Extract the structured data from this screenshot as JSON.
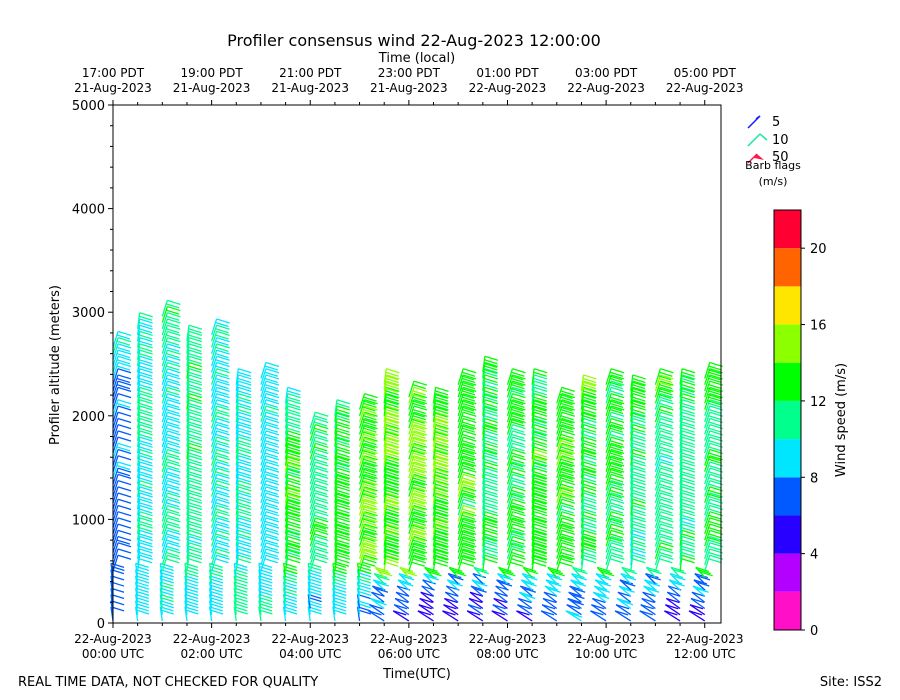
{
  "chart_data": {
    "type": "scatter",
    "title": "Profiler consensus wind 22-Aug-2023 12:00:00",
    "top_axis_label": "Time (local)",
    "xlabel": "Time(UTC)",
    "ylabel": "Profiler altitude (meters)",
    "ylim": [
      0,
      5000
    ],
    "xlim_hours": [
      0,
      12.33
    ],
    "y_ticks": [
      0,
      1000,
      2000,
      3000,
      4000,
      5000
    ],
    "bottom_ticks": [
      {
        "hour": 0,
        "line1": "22-Aug-2023",
        "line2": "00:00 UTC"
      },
      {
        "hour": 2,
        "line1": "22-Aug-2023",
        "line2": "02:00 UTC"
      },
      {
        "hour": 4,
        "line1": "22-Aug-2023",
        "line2": "04:00 UTC"
      },
      {
        "hour": 6,
        "line1": "22-Aug-2023",
        "line2": "06:00 UTC"
      },
      {
        "hour": 8,
        "line1": "22-Aug-2023",
        "line2": "08:00 UTC"
      },
      {
        "hour": 10,
        "line1": "22-Aug-2023",
        "line2": "10:00 UTC"
      },
      {
        "hour": 12,
        "line1": "22-Aug-2023",
        "line2": "12:00 UTC"
      }
    ],
    "top_ticks": [
      {
        "hour": 0,
        "line1": "17:00 PDT",
        "line2": "21-Aug-2023"
      },
      {
        "hour": 2,
        "line1": "19:00 PDT",
        "line2": "21-Aug-2023"
      },
      {
        "hour": 4,
        "line1": "21:00 PDT",
        "line2": "21-Aug-2023"
      },
      {
        "hour": 6,
        "line1": "23:00 PDT",
        "line2": "21-Aug-2023"
      },
      {
        "hour": 8,
        "line1": "01:00 PDT",
        "line2": "22-Aug-2023"
      },
      {
        "hour": 10,
        "line1": "03:00 PDT",
        "line2": "22-Aug-2023"
      },
      {
        "hour": 12,
        "line1": "05:00 PDT",
        "line2": "22-Aug-2023"
      }
    ],
    "barb_legend": {
      "title": "Barb flags",
      "units": "(m/s)",
      "entries": [
        {
          "label": "5",
          "color": "#1a1aff"
        },
        {
          "label": "10",
          "color": "#19e6a0"
        },
        {
          "label": "50",
          "color": "#ff1a4a"
        }
      ]
    },
    "colorbar": {
      "label": "Wind speed (m/s)",
      "min": 0,
      "max": 22,
      "ticks": [
        0,
        4,
        8,
        12,
        16,
        20
      ],
      "bins": [
        {
          "from": 0,
          "to": 2,
          "color": "#ff10c8"
        },
        {
          "from": 2,
          "to": 4,
          "color": "#b400ff"
        },
        {
          "from": 4,
          "to": 6,
          "color": "#2800ff"
        },
        {
          "from": 6,
          "to": 8,
          "color": "#005aff"
        },
        {
          "from": 8,
          "to": 10,
          "color": "#00e6ff"
        },
        {
          "from": 10,
          "to": 12,
          "color": "#00ff8c"
        },
        {
          "from": 12,
          "to": 14,
          "color": "#00ff00"
        },
        {
          "from": 14,
          "to": 16,
          "color": "#8cff00"
        },
        {
          "from": 16,
          "to": 18,
          "color": "#ffe600"
        },
        {
          "from": 18,
          "to": 20,
          "color": "#ff6400"
        },
        {
          "from": 20,
          "to": 22,
          "color": "#ff0032"
        }
      ]
    },
    "profiles": [
      {
        "hour": 0.0,
        "top": 2700,
        "lowspd": 7,
        "midspd": 7,
        "topspd": 10
      },
      {
        "hour": 0.5,
        "top": 2850,
        "lowspd": 9,
        "midspd": 10,
        "topspd": 10
      },
      {
        "hour": 1.0,
        "top": 3000,
        "lowspd": 9,
        "midspd": 10,
        "topspd": 12
      },
      {
        "hour": 1.5,
        "top": 2750,
        "lowspd": 9,
        "midspd": 11,
        "topspd": 11
      },
      {
        "hour": 2.0,
        "top": 2800,
        "lowspd": 9,
        "midspd": 10,
        "topspd": 10
      },
      {
        "hour": 2.5,
        "top": 2300,
        "lowspd": 12,
        "midspd": 10,
        "topspd": 9
      },
      {
        "hour": 3.0,
        "top": 2400,
        "lowspd": 10,
        "midspd": 9,
        "topspd": 9
      },
      {
        "hour": 3.5,
        "top": 2150,
        "lowspd": 9,
        "midspd": 13,
        "topspd": 10
      },
      {
        "hour": 4.0,
        "top": 1900,
        "lowspd": 8,
        "midspd": 12,
        "topspd": 11
      },
      {
        "hour": 4.5,
        "top": 2000,
        "lowspd": 8,
        "midspd": 13,
        "topspd": 12
      },
      {
        "hour": 5.0,
        "top": 2100,
        "lowspd": 7,
        "midspd": 14,
        "topspd": 13
      },
      {
        "hour": 5.5,
        "top": 2300,
        "lowspd": 6,
        "midspd": 14,
        "topspd": 14
      },
      {
        "hour": 6.0,
        "top": 2200,
        "lowspd": 5,
        "midspd": 14,
        "topspd": 13
      },
      {
        "hour": 6.5,
        "top": 2150,
        "lowspd": 4,
        "midspd": 14,
        "topspd": 14
      },
      {
        "hour": 7.0,
        "top": 2350,
        "lowspd": 4,
        "midspd": 13,
        "topspd": 13
      },
      {
        "hour": 7.5,
        "top": 2450,
        "lowspd": 5,
        "midspd": 12,
        "topspd": 13
      },
      {
        "hour": 8.0,
        "top": 2350,
        "lowspd": 5,
        "midspd": 12,
        "topspd": 13
      },
      {
        "hour": 8.5,
        "top": 2300,
        "lowspd": 6,
        "midspd": 13,
        "topspd": 12
      },
      {
        "hour": 9.0,
        "top": 2150,
        "lowspd": 6,
        "midspd": 13,
        "topspd": 13
      },
      {
        "hour": 9.5,
        "top": 2250,
        "lowspd": 7,
        "midspd": 12,
        "topspd": 14
      },
      {
        "hour": 10.0,
        "top": 2300,
        "lowspd": 7,
        "midspd": 12,
        "topspd": 13
      },
      {
        "hour": 10.5,
        "top": 2250,
        "lowspd": 7,
        "midspd": 11,
        "topspd": 14
      },
      {
        "hour": 11.0,
        "top": 2350,
        "lowspd": 6,
        "midspd": 11,
        "topspd": 14
      },
      {
        "hour": 11.5,
        "top": 2300,
        "lowspd": 5,
        "midspd": 11,
        "topspd": 12
      },
      {
        "hour": 12.0,
        "top": 2400,
        "lowspd": 5,
        "midspd": 12,
        "topspd": 13
      }
    ]
  },
  "footer": {
    "left": "REAL TIME DATA, NOT CHECKED FOR QUALITY",
    "right": "Site: ISS2"
  }
}
